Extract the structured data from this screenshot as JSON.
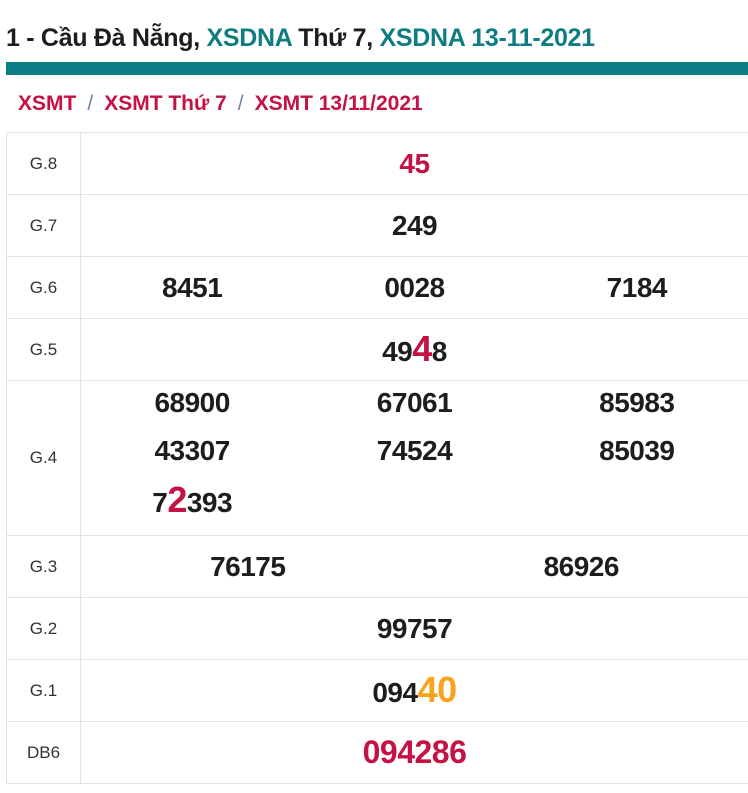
{
  "colors": {
    "accent_teal": "#0a7e82",
    "crimson": "#c51244",
    "orange": "#f9a21b",
    "number_dark": "#1d1d1d",
    "divider_gray": "#e2e2e2",
    "breadcrumb_separator": "#7186a6"
  },
  "header": {
    "title_parts": [
      {
        "text": "1 - Cầu Đà Nẵng, ",
        "color": "dark",
        "link": false
      },
      {
        "text": "XSDNA ",
        "color": "teal",
        "link": true
      },
      {
        "text": "Thứ 7, ",
        "color": "dark",
        "link": false
      },
      {
        "text": "XSDNA 13-11-2021",
        "color": "teal",
        "link": true
      }
    ]
  },
  "breadcrumb": {
    "separator": "/",
    "items": [
      {
        "label": "XSMT"
      },
      {
        "label": "XSMT Thứ 7"
      },
      {
        "label": "XSMT 13/11/2021"
      }
    ]
  },
  "table": {
    "rows": [
      {
        "label": "G.8",
        "lines": [
          [
            [
              {
                "t": "45",
                "c": "red"
              }
            ]
          ]
        ]
      },
      {
        "label": "G.7",
        "lines": [
          [
            [
              {
                "t": "249"
              }
            ]
          ]
        ]
      },
      {
        "label": "G.6",
        "lines": [
          [
            [
              {
                "t": "8451"
              }
            ],
            [
              {
                "t": "0028"
              }
            ],
            [
              {
                "t": "7184"
              }
            ]
          ]
        ]
      },
      {
        "label": "G.5",
        "lines": [
          [
            [
              {
                "t": "49"
              },
              {
                "t": "4",
                "c": "red",
                "big": true
              },
              {
                "t": "8"
              }
            ]
          ]
        ]
      },
      {
        "label": "G.4",
        "lines": [
          [
            [
              {
                "t": "68900"
              }
            ],
            [
              {
                "t": "67061"
              }
            ],
            [
              {
                "t": "85983"
              }
            ]
          ],
          [
            [
              {
                "t": "43307"
              }
            ],
            [
              {
                "t": "74524"
              }
            ],
            [
              {
                "t": "85039"
              }
            ]
          ],
          [
            [
              {
                "t": "7"
              },
              {
                "t": "2",
                "c": "red",
                "big": true
              },
              {
                "t": "393"
              }
            ],
            [],
            []
          ]
        ]
      },
      {
        "label": "G.3",
        "lines": [
          [
            [
              {
                "t": "76175"
              }
            ],
            [
              {
                "t": "86926"
              }
            ]
          ]
        ]
      },
      {
        "label": "G.2",
        "lines": [
          [
            [
              {
                "t": "99757"
              }
            ]
          ]
        ]
      },
      {
        "label": "G.1",
        "lines": [
          [
            [
              {
                "t": "094"
              },
              {
                "t": "40",
                "c": "orange",
                "big": true
              }
            ]
          ]
        ]
      },
      {
        "label": "DB6",
        "emphasis": true,
        "lines": [
          [
            [
              {
                "t": "094286",
                "c": "red"
              }
            ]
          ]
        ]
      }
    ]
  }
}
